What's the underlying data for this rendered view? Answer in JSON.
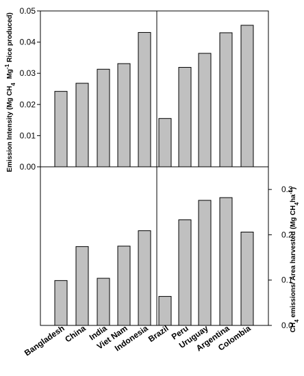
{
  "chart_data": [
    {
      "type": "bar",
      "panel": "top",
      "ylabel": "Emission Intensity (Mg CH4 Mg-1 Rice produced)",
      "ylim": [
        0,
        0.05
      ],
      "yticks": [
        "0.00",
        "0.01",
        "0.02",
        "0.03",
        "0.04",
        "0.05"
      ],
      "y_axis_side": "left",
      "categories": [
        "Bangladesh",
        "China",
        "India",
        "Viet Nam",
        "Indonesia",
        "Brazil",
        "Peru",
        "Uruguay",
        "Argentina",
        "Colombia"
      ],
      "values": [
        0.0242,
        0.0268,
        0.0313,
        0.0331,
        0.0431,
        0.0155,
        0.0319,
        0.0364,
        0.043,
        0.0454
      ],
      "bar_color": "#c0c0c0",
      "grid": false
    },
    {
      "type": "bar",
      "panel": "bottom",
      "ylabel": "CH4 emissions/ Area harvested (Mg CH4 ha-1)",
      "ylim": [
        0,
        0.35
      ],
      "yticks": [
        "0.0",
        "0.1",
        "0.2",
        "0.3"
      ],
      "y_axis_side": "right",
      "categories": [
        "Bangladesh",
        "China",
        "India",
        "Viet Nam",
        "Indonesia",
        "Brazil",
        "Peru",
        "Uruguay",
        "Argentina",
        "Colombia"
      ],
      "values": [
        0.099,
        0.174,
        0.104,
        0.175,
        0.209,
        0.064,
        0.233,
        0.276,
        0.282,
        0.206
      ],
      "bar_color": "#c0c0c0",
      "grid": false
    }
  ]
}
